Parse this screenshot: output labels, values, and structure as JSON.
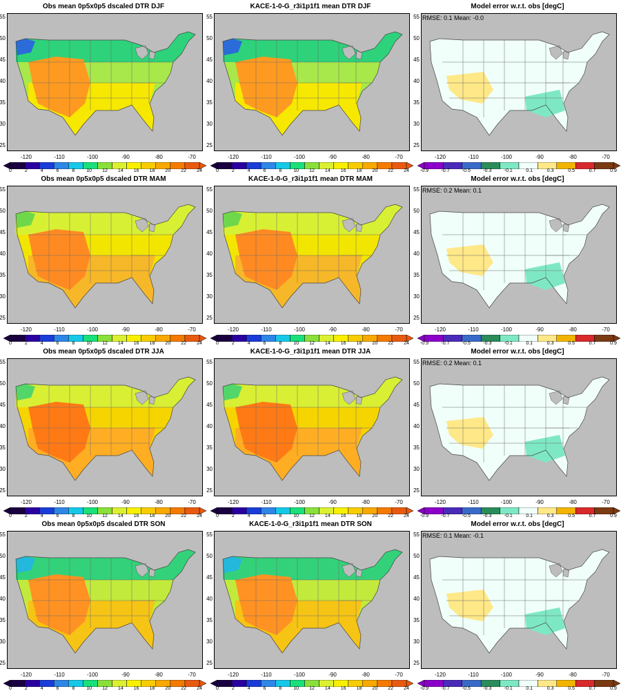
{
  "rows": [
    {
      "season": "DJF",
      "titles": [
        "Obs mean 0p5x0p5 dscaled DTR DJF",
        "KACE-1-0-G_r3i1p1f1 mean DTR DJF",
        "Model error w.r.t. obs [degC]"
      ],
      "rmse": "RMSE: 0.1",
      "mean": "Mean: -0.0"
    },
    {
      "season": "MAM",
      "titles": [
        "Obs mean 0p5x0p5 dscaled DTR MAM",
        "KACE-1-0-G_r3i1p1f1 mean DTR MAM",
        "Model error w.r.t. obs [degC]"
      ],
      "rmse": "RMSE: 0.2",
      "mean": "Mean: 0.1"
    },
    {
      "season": "JJA",
      "titles": [
        "Obs mean 0p5x0p5 dscaled DTR JJA",
        "KACE-1-0-G_r3i1p1f1 mean DTR JJA",
        "Model error w.r.t. obs [degC]"
      ],
      "rmse": "RMSE: 0.2",
      "mean": "Mean: 0.1"
    },
    {
      "season": "SON",
      "titles": [
        "Obs mean 0p5x0p5 dscaled DTR SON",
        "KACE-1-0-G_r3i1p1f1 mean DTR SON",
        "Model error w.r.t. obs [degC]"
      ],
      "rmse": "RMSE: 0.1",
      "mean": "Mean: -0.1"
    }
  ],
  "axes": {
    "lat_ticks": [
      "55",
      "50",
      "45",
      "40",
      "35",
      "30",
      "25"
    ],
    "lon_ticks": [
      "-120",
      "-110",
      "-100",
      "-90",
      "-80",
      "-70"
    ]
  },
  "colorbars": {
    "value_labels": [
      "0",
      "2",
      "4",
      "6",
      "8",
      "10",
      "12",
      "14",
      "16",
      "18",
      "20",
      "22",
      "24"
    ],
    "value_colors": [
      "#1a0040",
      "#2a00a0",
      "#1a3cd8",
      "#2e86e6",
      "#16c8e8",
      "#19e07a",
      "#8ae03a",
      "#dcf032",
      "#f8f000",
      "#f8cc00",
      "#f8a800",
      "#f47a00",
      "#e85a10"
    ],
    "error_labels": [
      "-0.9",
      "-0.7",
      "-0.5",
      "-0.3",
      "-0.1",
      "0.1",
      "0.3",
      "0.5",
      "0.7",
      "0.9"
    ],
    "error_colors": [
      "#8a00c8",
      "#4a2ab8",
      "#3a6ac8",
      "#2a8c5a",
      "#7ee8c4",
      "#f0fffa",
      "#ffe888",
      "#f2b400",
      "#d82a2a",
      "#7a3a12"
    ]
  },
  "fill_colors": {
    "DJF": {
      "north": "#2dd27a",
      "mid": "#a8e84a",
      "south": "#f6e800",
      "hot": "#ff9a20",
      "cold": "#2b6cd8"
    },
    "MAM": {
      "north": "#d8f034",
      "mid": "#f2e600",
      "south": "#f6b828",
      "hot": "#ff8a22",
      "cold": "#6fd84a"
    },
    "JJA": {
      "north": "#d8ef34",
      "mid": "#f6d400",
      "south": "#ffae24",
      "hot": "#ff7a14",
      "cold": "#52d66a"
    },
    "SON": {
      "north": "#33d27a",
      "mid": "#c2ea3c",
      "south": "#f6c414",
      "hot": "#ff9222",
      "cold": "#23b8dc"
    }
  },
  "error_fills": {
    "DJF": {
      "base": "#f0fffa",
      "warm": "#ffe888",
      "cool": "#7ee8c4"
    },
    "MAM": {
      "base": "#f0fffa",
      "warm": "#ffe888",
      "cool": "#7ee8c4"
    },
    "JJA": {
      "base": "#f0fffa",
      "warm": "#ffe888",
      "cool": "#7ee8c4"
    },
    "SON": {
      "base": "#f0fffa",
      "warm": "#ffe888",
      "cool": "#7ee8c4"
    }
  }
}
